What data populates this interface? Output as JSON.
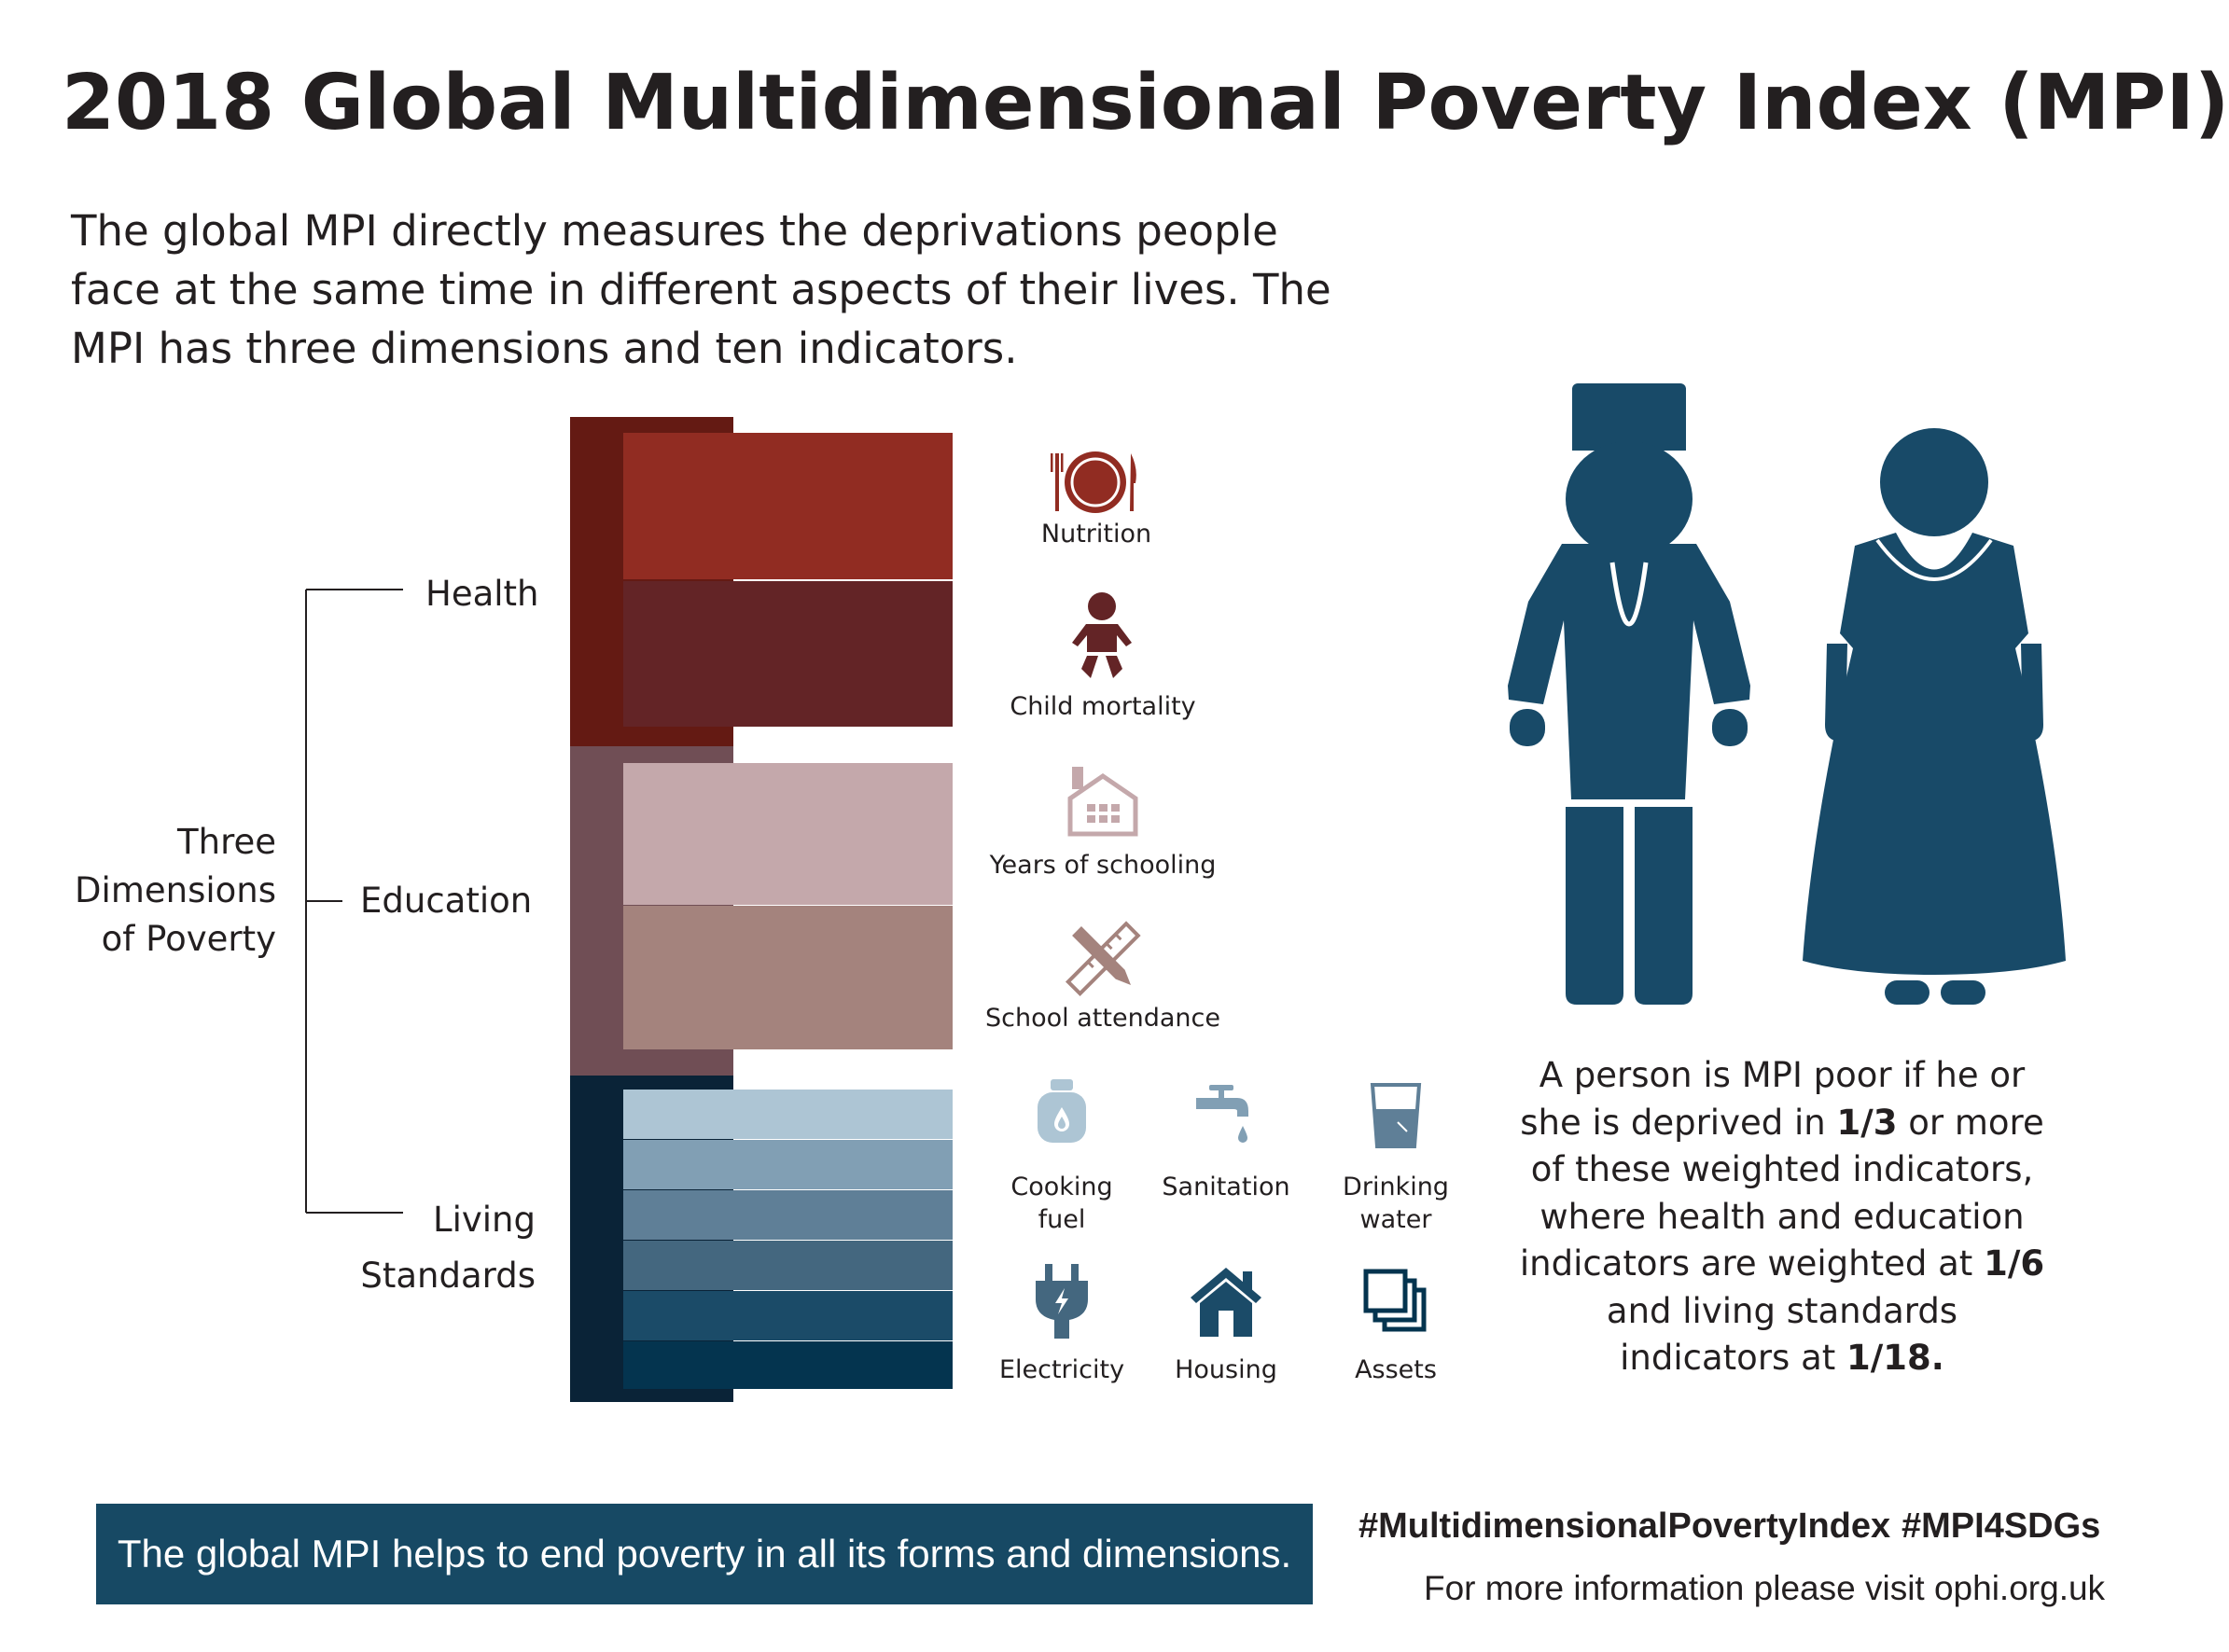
{
  "title": "2018 Global Multidimensional Poverty Index (MPI)",
  "intro": "The global MPI directly measures the deprivations people face at the same time in different aspects of their lives. The MPI has three dimensions and ten indicators.",
  "tree": {
    "root_lines": [
      "Three",
      "Dimensions",
      "of Poverty"
    ],
    "health": "Health",
    "education": "Education",
    "living_lines": [
      "Living",
      "Standards"
    ]
  },
  "indicators": {
    "nutrition": "Nutrition",
    "child_mortality": "Child mortality",
    "years_of_schooling": "Years of schooling",
    "school_attendance": "School attendance",
    "cooking_fuel_lines": [
      "Cooking",
      "fuel"
    ],
    "sanitation": "Sanitation",
    "drinking_water_lines": [
      "Drinking",
      "water"
    ],
    "electricity": "Electricity",
    "housing": "Housing",
    "assets": "Assets"
  },
  "icons": {
    "nutrition": "plate-fork-knife-icon",
    "child_mortality": "baby-icon",
    "years_of_schooling": "school-building-icon",
    "school_attendance": "pencil-ruler-icon",
    "cooking_fuel": "gas-cylinder-icon",
    "sanitation": "tap-icon",
    "drinking_water": "water-glass-icon",
    "electricity": "electric-plug-icon",
    "housing": "house-icon",
    "assets": "stacked-squares-icon",
    "people": "man-and-woman-icon"
  },
  "explanation": {
    "line1": "A person is MPI poor if he or",
    "line2_pre": "she is deprived in ",
    "line2_bold": "1/3",
    "line2_post": " or more",
    "line3": "of these weighted indicators,",
    "line4": "where health and education",
    "line5_pre": "indicators are weighted at ",
    "line5_bold": "1/6",
    "line6": "and living standards",
    "line7_pre": "indicators at ",
    "line7_bold": "1/18."
  },
  "footer": {
    "banner": "The global MPI helps to end poverty in all its forms and dimensions.",
    "hashtag1": "#MultidimensionalPovertyIndex",
    "hashtag2": "#MPI4SDGs",
    "info": "For more information please visit ophi.org.uk"
  },
  "colors": {
    "health_dark": "#641a13",
    "nutrition": "#912c22",
    "child_mortality": "#632426",
    "education_dark": "#704e55",
    "years_of_schooling": "#c4a8ab",
    "school_attendance": "#a4837d",
    "living_dark": "#0a2337",
    "living_standards": [
      "#adc5d4",
      "#819fb4",
      "#5f7f97",
      "#44677f",
      "#1b4b68",
      "#04344f"
    ],
    "people": "#184a68",
    "banner": "#174964"
  }
}
